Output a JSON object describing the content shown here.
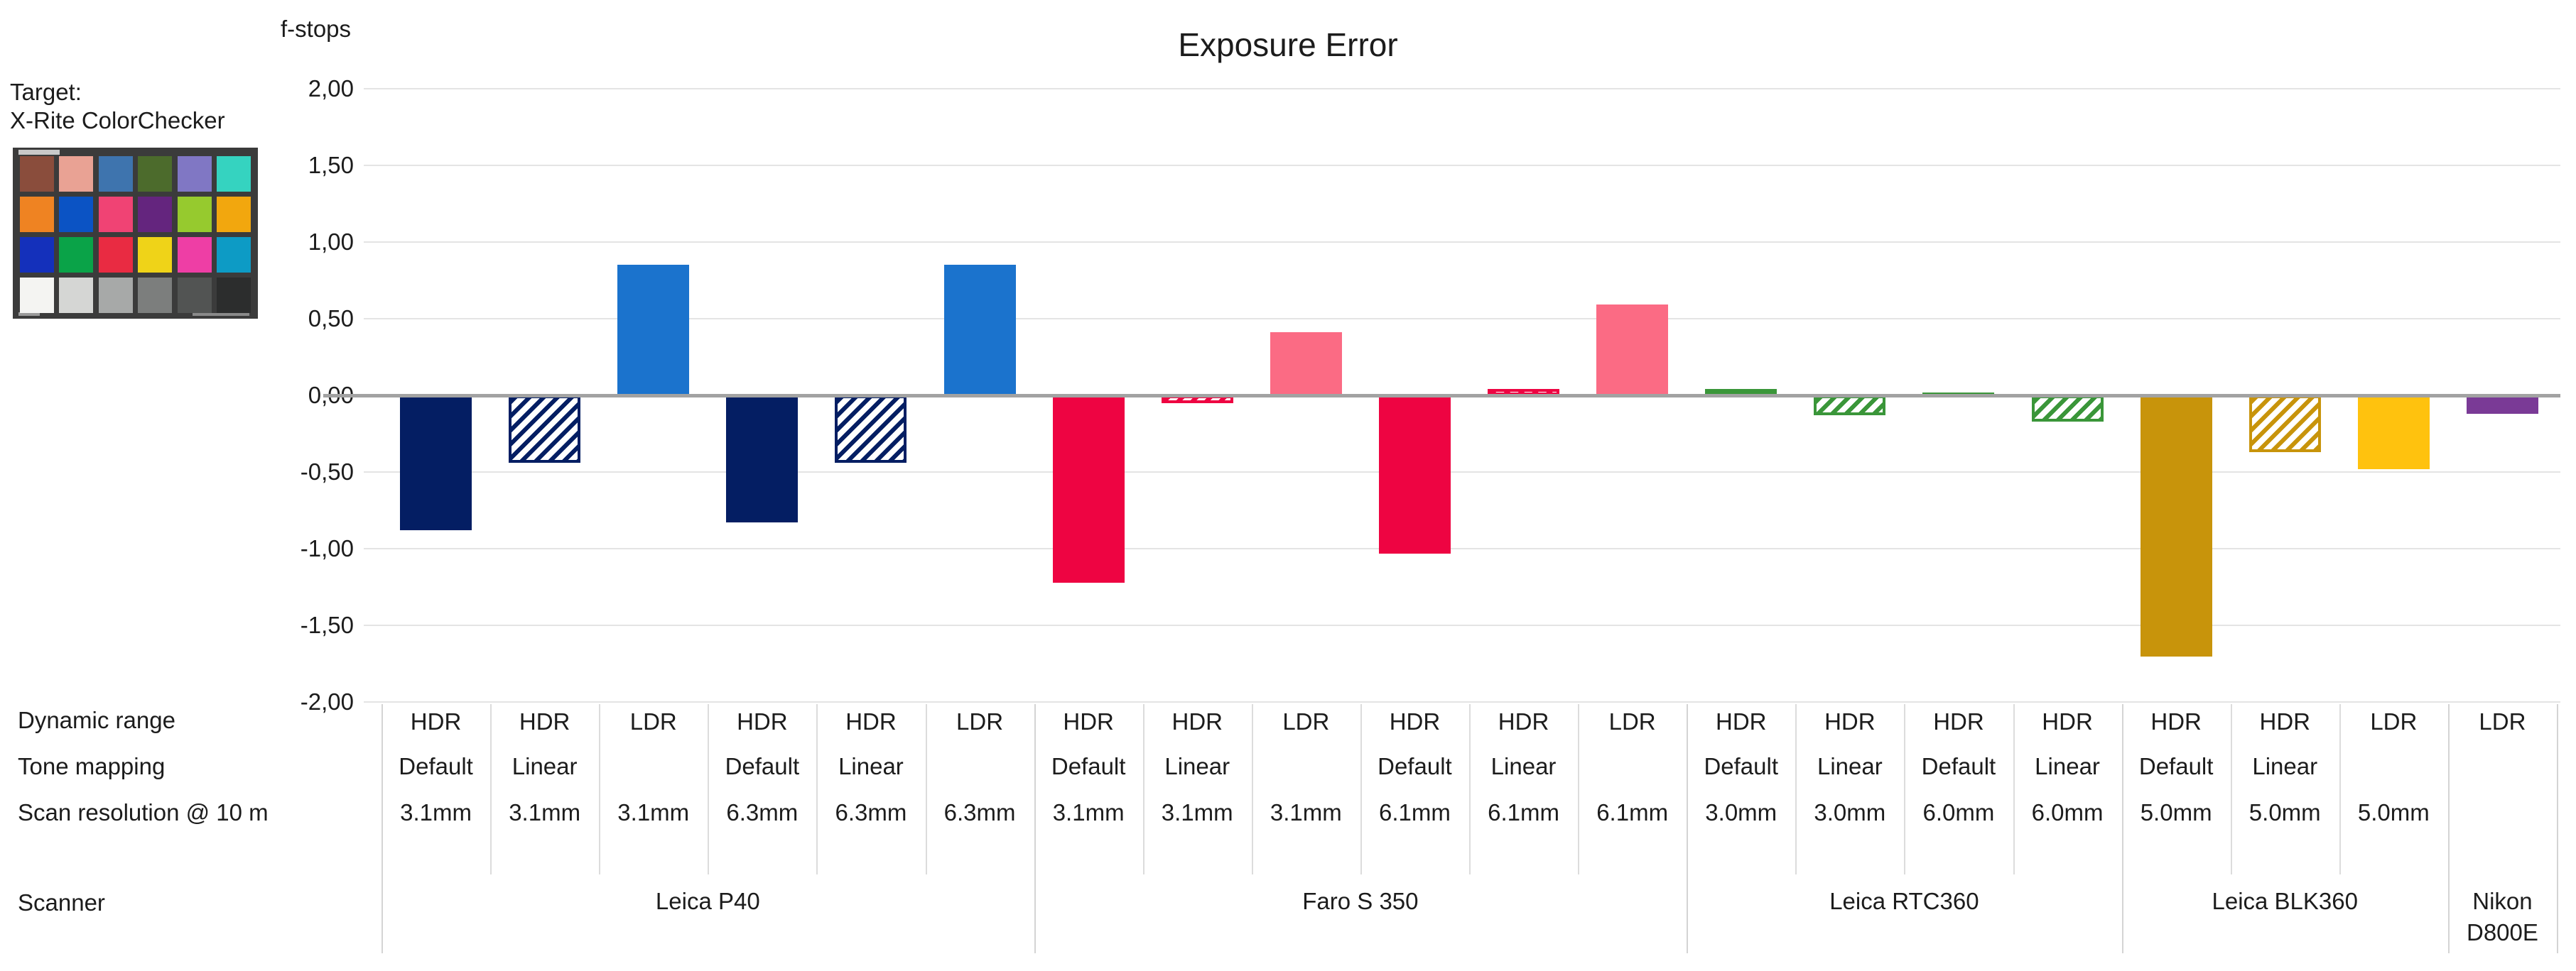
{
  "title": "Exposure Error",
  "axis": {
    "unit_label": "f-stops",
    "tick_labels": [
      "2,00",
      "1,50",
      "1,00",
      "0,50",
      "0,00",
      "-0,50",
      "-1,00",
      "-1,50",
      "-2,00"
    ],
    "tick_values": [
      2.0,
      1.5,
      1.0,
      0.5,
      0.0,
      -0.5,
      -1.0,
      -1.5,
      -2.0
    ],
    "ymax": 2.0,
    "ymin": -2.0,
    "grid_color": "#e4e4e4",
    "zero_line_color": "#a2a2a2"
  },
  "target": {
    "line1": "Target:",
    "line2": "X-Rite ColorChecker",
    "frame_color": "#3b3b3b",
    "patch_colors": [
      "#8a4d3c",
      "#e9a294",
      "#3e74ae",
      "#4c6b2c",
      "#8077c4",
      "#35d3c0",
      "#ef8322",
      "#0b53c4",
      "#f04374",
      "#64257e",
      "#96ca2e",
      "#f2a70e",
      "#1430bb",
      "#0aa348",
      "#e92b42",
      "#efd318",
      "#ee3ea5",
      "#0d9bc5",
      "#f4f4f2",
      "#d5d6d4",
      "#a7a9a8",
      "#7c7e7d",
      "#525453",
      "#2c2d2d"
    ]
  },
  "table": {
    "row_labels": [
      "Dynamic range",
      "Tone mapping",
      "Scan resolution @ 10 m",
      "Scanner"
    ]
  },
  "chart_data": {
    "type": "bar",
    "title": "Exposure Error",
    "ylabel": "f-stops",
    "ylim": [
      -2.0,
      2.0
    ],
    "grid": true,
    "value_unit": "f-stops",
    "groups": [
      {
        "scanner": "Leica P40",
        "bars": [
          {
            "dynamic_range": "HDR",
            "tone_mapping": "Default",
            "resolution": "3.1mm",
            "value": -0.88,
            "style": "solid",
            "color": "#041e63"
          },
          {
            "dynamic_range": "HDR",
            "tone_mapping": "Linear",
            "resolution": "3.1mm",
            "value": -0.44,
            "style": "hatched",
            "color": "#041e63"
          },
          {
            "dynamic_range": "LDR",
            "tone_mapping": "",
            "resolution": "3.1mm",
            "value": 0.85,
            "style": "solid",
            "color": "#1b73cd"
          },
          {
            "dynamic_range": "HDR",
            "tone_mapping": "Default",
            "resolution": "6.3mm",
            "value": -0.83,
            "style": "solid",
            "color": "#041e63"
          },
          {
            "dynamic_range": "HDR",
            "tone_mapping": "Linear",
            "resolution": "6.3mm",
            "value": -0.44,
            "style": "hatched",
            "color": "#041e63"
          },
          {
            "dynamic_range": "LDR",
            "tone_mapping": "",
            "resolution": "6.3mm",
            "value": 0.85,
            "style": "solid",
            "color": "#1b73cd"
          }
        ]
      },
      {
        "scanner": "Faro S 350",
        "bars": [
          {
            "dynamic_range": "HDR",
            "tone_mapping": "Default",
            "resolution": "3.1mm",
            "value": -1.22,
            "style": "solid",
            "color": "#ee0442"
          },
          {
            "dynamic_range": "HDR",
            "tone_mapping": "Linear",
            "resolution": "3.1mm",
            "value": -0.05,
            "style": "hatched",
            "color": "#ee0442"
          },
          {
            "dynamic_range": "LDR",
            "tone_mapping": "",
            "resolution": "3.1mm",
            "value": 0.41,
            "style": "solid",
            "color": "#fb6b84"
          },
          {
            "dynamic_range": "HDR",
            "tone_mapping": "Default",
            "resolution": "6.1mm",
            "value": -1.03,
            "style": "solid",
            "color": "#ee0442"
          },
          {
            "dynamic_range": "HDR",
            "tone_mapping": "Linear",
            "resolution": "6.1mm",
            "value": 0.04,
            "style": "hatched",
            "color": "#ee0442"
          },
          {
            "dynamic_range": "LDR",
            "tone_mapping": "",
            "resolution": "6.1mm",
            "value": 0.59,
            "style": "solid",
            "color": "#fb6b84"
          }
        ]
      },
      {
        "scanner": "Leica RTC360",
        "bars": [
          {
            "dynamic_range": "HDR",
            "tone_mapping": "Default",
            "resolution": "3.0mm",
            "value": 0.04,
            "style": "solid",
            "color": "#3a9639"
          },
          {
            "dynamic_range": "HDR",
            "tone_mapping": "Linear",
            "resolution": "3.0mm",
            "value": -0.13,
            "style": "hatched",
            "color": "#3a9639"
          },
          {
            "dynamic_range": "HDR",
            "tone_mapping": "Default",
            "resolution": "6.0mm",
            "value": 0.02,
            "style": "solid",
            "color": "#3a9639"
          },
          {
            "dynamic_range": "HDR",
            "tone_mapping": "Linear",
            "resolution": "6.0mm",
            "value": -0.17,
            "style": "hatched",
            "color": "#3a9639"
          }
        ]
      },
      {
        "scanner": "Leica BLK360",
        "bars": [
          {
            "dynamic_range": "HDR",
            "tone_mapping": "Default",
            "resolution": "5.0mm",
            "value": -1.7,
            "style": "solid",
            "color": "#c8940b"
          },
          {
            "dynamic_range": "HDR",
            "tone_mapping": "Linear",
            "resolution": "5.0mm",
            "value": -0.37,
            "style": "hatched",
            "color": "#c8940b"
          },
          {
            "dynamic_range": "LDR",
            "tone_mapping": "",
            "resolution": "5.0mm",
            "value": -0.48,
            "style": "solid",
            "color": "#ffc20e"
          }
        ]
      },
      {
        "scanner": "Nikon D800E",
        "bars": [
          {
            "dynamic_range": "LDR",
            "tone_mapping": "",
            "resolution": "",
            "value": -0.12,
            "style": "solid",
            "color": "#7a3a96"
          }
        ]
      }
    ]
  }
}
